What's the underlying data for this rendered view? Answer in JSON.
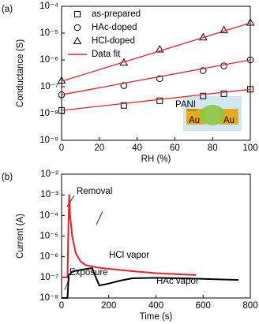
{
  "chart_data": [
    {
      "type": "scatter",
      "panel": "(a)",
      "xlabel": "RH (%)",
      "ylabel": "Conductance (S)",
      "log": true,
      "legend": "upper left",
      "xlim": [
        0,
        100
      ],
      "xticks": [
        0,
        20,
        40,
        60,
        80,
        100
      ],
      "ylim": [
        1e-09,
        0.0001
      ],
      "yticks": [
        {
          "value": 1e-09,
          "label": "10⁻⁹"
        },
        {
          "value": 1e-08,
          "label": "10⁻⁸"
        },
        {
          "value": 1e-07,
          "label": "10⁻⁷"
        },
        {
          "value": 1e-06,
          "label": "10⁻⁶"
        },
        {
          "value": 1e-05,
          "label": "10⁻⁵"
        },
        {
          "value": 0.0001,
          "label": "10⁻⁴"
        }
      ],
      "series": [
        {
          "name": "as-prepared",
          "marker": "square",
          "color": "#000000",
          "x": [
            0,
            33,
            52,
            75,
            86,
            100
          ],
          "values": [
            1.3e-08,
            2e-08,
            3e-08,
            4.5e-08,
            5.5e-08,
            8e-08
          ]
        },
        {
          "name": "HAc-doped",
          "marker": "circle",
          "color": "#000000",
          "x": [
            0,
            33,
            52,
            75,
            86,
            100
          ],
          "values": [
            5e-08,
            1.1e-07,
            2e-07,
            4e-07,
            6e-07,
            1e-06
          ]
        },
        {
          "name": "HCl-doped",
          "marker": "triangle",
          "color": "#000000",
          "x": [
            0,
            33,
            52,
            75,
            86,
            100
          ],
          "values": [
            1.7e-07,
            8e-07,
            2.5e-06,
            7e-06,
            1.3e-05,
            2.5e-05
          ]
        },
        {
          "name": "Data fit",
          "marker": "line",
          "color": "#e8202a",
          "segments": [
            {
              "x": [
                0,
                100
              ],
              "values": [
                1.3e-08,
                8e-08
              ]
            },
            {
              "x": [
                0,
                100
              ],
              "values": [
                5e-08,
                1e-06
              ]
            },
            {
              "x": [
                0,
                100
              ],
              "values": [
                1.6e-07,
                2.4e-05
              ]
            }
          ]
        }
      ],
      "annotations": [
        "PANI",
        "Au",
        "Au"
      ]
    },
    {
      "type": "line",
      "panel": "(b)",
      "xlabel": "Time (s)",
      "ylabel": "Current (A)",
      "log": true,
      "xlim": [
        0,
        800
      ],
      "xticks": [
        0,
        200,
        400,
        600,
        800
      ],
      "ylim": [
        1e-08,
        0.01
      ],
      "yticks": [
        {
          "value": 1e-08,
          "label": "10⁻⁸"
        },
        {
          "value": 1e-07,
          "label": "10⁻⁷"
        },
        {
          "value": 1e-06,
          "label": "10⁻⁶"
        },
        {
          "value": 1e-05,
          "label": "10⁻⁵"
        },
        {
          "value": 0.0001,
          "label": "10⁻⁴"
        },
        {
          "value": 0.001,
          "label": "10⁻³"
        },
        {
          "value": 0.01,
          "label": "10⁻²"
        }
      ],
      "series": [
        {
          "color": "#e8202a",
          "x": [
            0,
            25,
            28,
            32,
            36,
            45,
            60,
            80,
            100,
            150,
            200,
            300,
            400,
            500,
            570
          ],
          "values": [
            1e-07,
            1e-07,
            1e-05,
            0.001,
            0.0001,
            1e-05,
            1.5e-06,
            6e-07,
            4e-07,
            3e-07,
            2.6e-07,
            2e-07,
            1.6e-07,
            1.4e-07,
            1.3e-07
          ]
        },
        {
          "color": "#000000",
          "x": [
            0,
            25,
            30,
            50,
            100,
            130,
            145,
            160,
            200,
            250,
            300,
            400,
            500,
            600,
            750
          ],
          "values": [
            1e-08,
            1e-08,
            1.3e-07,
            2e-07,
            2.5e-07,
            2.8e-07,
            1e-07,
            4e-08,
            5e-08,
            7e-08,
            9e-08,
            9.5e-08,
            9e-08,
            8.5e-08,
            7.5e-08
          ]
        }
      ],
      "annotations": [
        "Removal",
        "HCl vapor",
        "Exposure",
        "HAc vapor"
      ]
    }
  ]
}
